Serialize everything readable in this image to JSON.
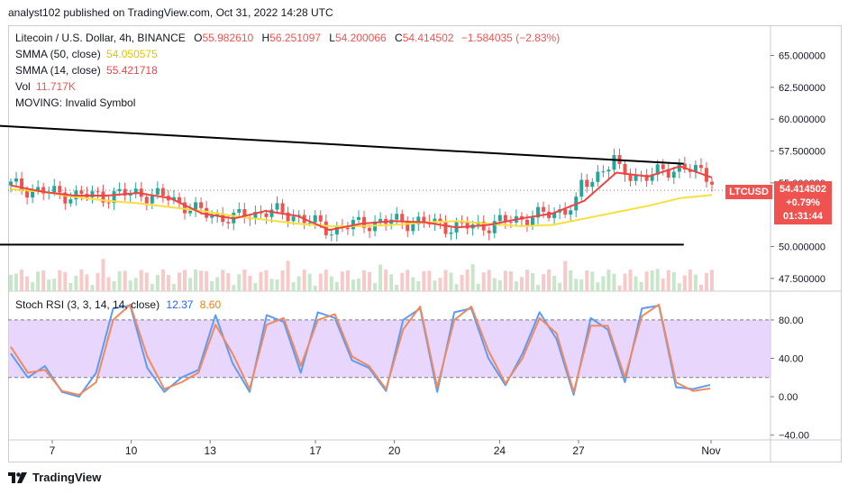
{
  "header": {
    "text": "analyst102 published on TradingView.com, Oct 31, 2022 14:28 UTC"
  },
  "legend": {
    "title": "Litecoin / U.S. Dollar, 4h, BINANCE",
    "o_label": "O",
    "o_value": "55.982610",
    "h_label": "H",
    "h_value": "56.251097",
    "l_label": "L",
    "l_value": "54.200066",
    "c_label": "C",
    "c_value": "54.414502",
    "change": "−1.584035 (−2.83%)",
    "smma50_label": "SMMA (50, close)",
    "smma50_value": "54.050575",
    "smma14_label": "SMMA (14, close)",
    "smma14_value": "55.421718",
    "vol_label": "Vol",
    "vol_value": "11.717K",
    "moving_label": "MOVING: Invalid Symbol"
  },
  "badges": {
    "symbol": "LTCUSD",
    "price": "54.414502",
    "change_pct": "+0.79%",
    "countdown": "01:31:44"
  },
  "stoch_legend": {
    "label": "Stoch RSI (3, 3, 14, 14, close)",
    "k_value": "12.37",
    "d_value": "8.60"
  },
  "footer": {
    "brand": "TradingView"
  },
  "colors": {
    "up": "#26a69a",
    "down": "#ef5350",
    "smma50": "#f7e03c",
    "smma14": "#ef4444",
    "stoch_k": "#5b9cf6",
    "stoch_d": "#f08a5d",
    "stoch_band": "#e1c8fb",
    "trendline": "#000000",
    "vol_up": "#c8e6c9",
    "vol_down": "#f8c9c9"
  },
  "chart_data": [
    {
      "type": "candlestick",
      "title": "Litecoin / U.S. Dollar, 4h, BINANCE",
      "y_ticks": [
        "65.000000",
        "62.500000",
        "60.000000",
        "57.500000",
        "55.000000",
        "50.000000",
        "47.500000"
      ],
      "x_ticks": [
        "7",
        "10",
        "13",
        "17",
        "20",
        "24",
        "27",
        "Nov"
      ],
      "ylim": [
        46.5,
        67.3
      ],
      "last_price": 54.414502,
      "series": [
        {
          "name": "SMMA (50, close)",
          "values": [
            54.5,
            54.3,
            53.9,
            53.6,
            53.4,
            53.1,
            52.8,
            52.4,
            52.1,
            51.8,
            51.6,
            51.6,
            51.7,
            51.9,
            52.0,
            51.8,
            51.6,
            51.7,
            52.2,
            52.7,
            53.2,
            53.8,
            54.05
          ]
        },
        {
          "name": "SMMA (14, close)",
          "values": [
            54.8,
            54.3,
            54.0,
            54.0,
            54.2,
            53.8,
            52.6,
            52.2,
            52.8,
            52.4,
            51.3,
            51.8,
            52.0,
            51.9,
            51.5,
            51.7,
            52.2,
            52.6,
            53.6,
            55.8,
            55.5,
            56.3,
            55.42
          ]
        }
      ],
      "trendlines": [
        {
          "name": "upper",
          "from": [
            "3",
            59.7
          ],
          "to": [
            "31",
            56.5
          ]
        },
        {
          "name": "lower",
          "from": [
            "3",
            50.15
          ],
          "to": [
            "31",
            50.15
          ]
        }
      ]
    },
    {
      "type": "line",
      "title": "Stoch RSI (3, 3, 14, 14, close)",
      "y_ticks": [
        "80.00",
        "40.00",
        "0.00",
        "−40.00"
      ],
      "band": [
        20,
        80
      ],
      "ylim": [
        -45,
        110
      ],
      "series": [
        {
          "name": "K",
          "values": [
            45,
            20,
            32,
            5,
            0,
            25,
            92,
            95,
            30,
            5,
            20,
            28,
            85,
            35,
            5,
            85,
            78,
            25,
            88,
            82,
            38,
            30,
            6,
            80,
            92,
            5,
            88,
            92,
            40,
            12,
            45,
            88,
            60,
            2,
            82,
            70,
            15,
            92,
            95,
            10,
            8,
            12.37
          ]
        },
        {
          "name": "D",
          "values": [
            52,
            25,
            28,
            6,
            2,
            15,
            80,
            96,
            42,
            8,
            15,
            25,
            75,
            45,
            8,
            75,
            82,
            32,
            80,
            86,
            42,
            32,
            8,
            70,
            94,
            10,
            80,
            94,
            48,
            14,
            40,
            82,
            66,
            5,
            74,
            74,
            20,
            84,
            96,
            15,
            6,
            8.6
          ]
        }
      ]
    }
  ]
}
